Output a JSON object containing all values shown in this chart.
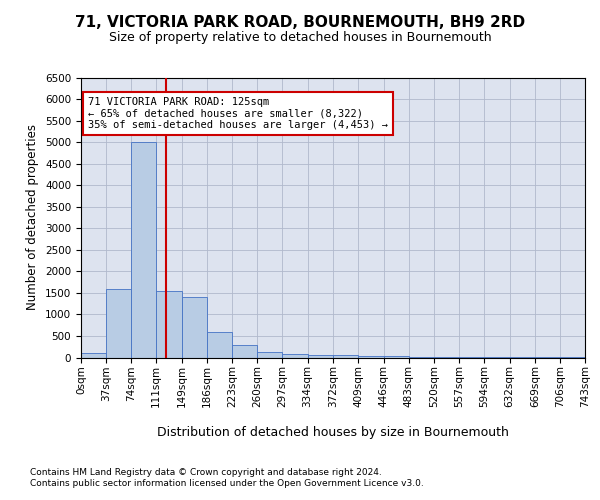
{
  "title1": "71, VICTORIA PARK ROAD, BOURNEMOUTH, BH9 2RD",
  "title2": "Size of property relative to detached houses in Bournemouth",
  "xlabel": "Distribution of detached houses by size in Bournemouth",
  "ylabel": "Number of detached properties",
  "footer1": "Contains HM Land Registry data © Crown copyright and database right 2024.",
  "footer2": "Contains public sector information licensed under the Open Government Licence v3.0.",
  "annotation_line1": "71 VICTORIA PARK ROAD: 125sqm",
  "annotation_line2": "← 65% of detached houses are smaller (8,322)",
  "annotation_line3": "35% of semi-detached houses are larger (4,453) →",
  "property_size": 125,
  "bin_edges": [
    0,
    37,
    74,
    111,
    149,
    186,
    223,
    260,
    297,
    334,
    372,
    409,
    446,
    483,
    520,
    557,
    594,
    632,
    669,
    706,
    743
  ],
  "bar_heights": [
    100,
    1600,
    5000,
    1550,
    1400,
    600,
    280,
    130,
    90,
    65,
    50,
    35,
    30,
    10,
    8,
    5,
    3,
    2,
    2,
    1
  ],
  "bar_color": "#b8cce4",
  "bar_edge_color": "#4472c4",
  "red_line_color": "#cc0000",
  "annotation_box_color": "#cc0000",
  "ylim": [
    0,
    6500
  ],
  "yticks": [
    0,
    500,
    1000,
    1500,
    2000,
    2500,
    3000,
    3500,
    4000,
    4500,
    5000,
    5500,
    6000,
    6500
  ],
  "grid_color": "#b0b8cc",
  "bg_color": "#dde3ef",
  "title1_fontsize": 11,
  "title2_fontsize": 9,
  "axis_label_fontsize": 8.5,
  "tick_fontsize": 7.5,
  "footer_fontsize": 6.5,
  "annotation_fontsize": 7.5,
  "xlabel_fontsize": 9
}
